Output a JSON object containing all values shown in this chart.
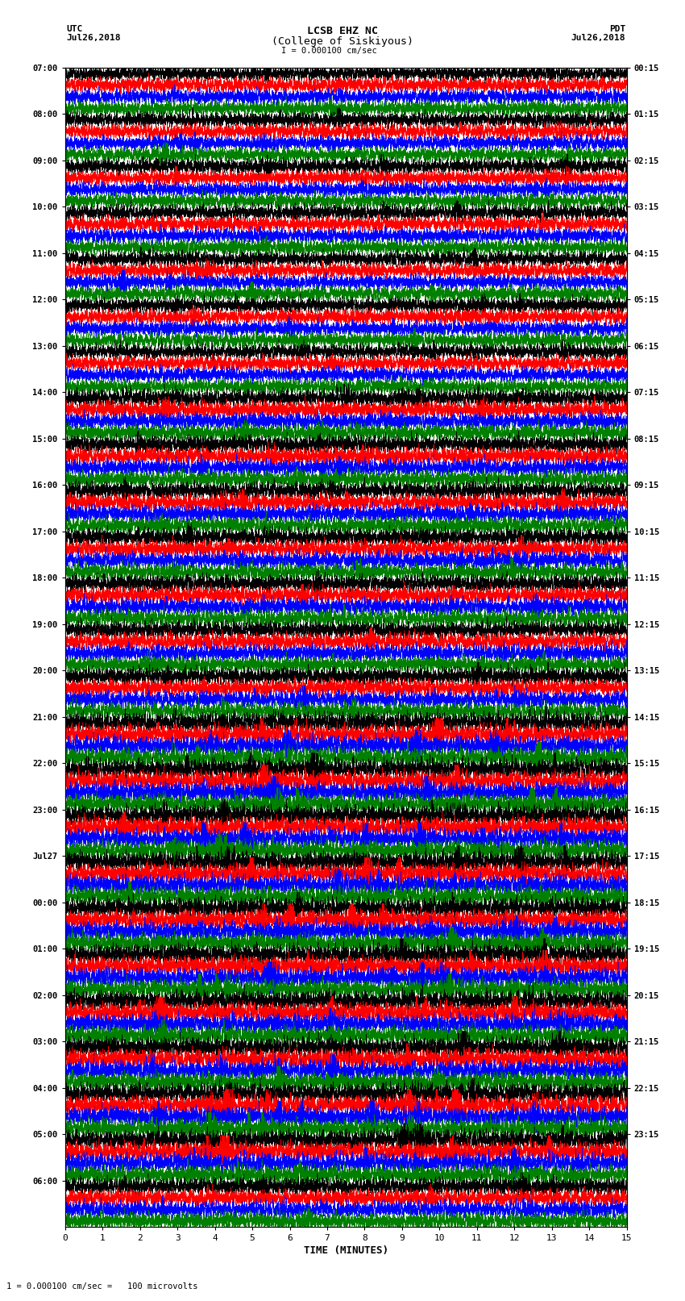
{
  "title_line1": "LCSB EHZ NC",
  "title_line2": "(College of Siskiyous)",
  "scale_label": "I = 0.000100 cm/sec",
  "bottom_label": "1 = 0.000100 cm/sec =   100 microvolts",
  "xlabel": "TIME (MINUTES)",
  "left_header": "UTC",
  "left_date": "Jul26,2018",
  "right_header": "PDT",
  "right_date": "Jul26,2018",
  "utc_labels": [
    "07:00",
    "08:00",
    "09:00",
    "10:00",
    "11:00",
    "12:00",
    "13:00",
    "14:00",
    "15:00",
    "16:00",
    "17:00",
    "18:00",
    "19:00",
    "20:00",
    "21:00",
    "22:00",
    "23:00",
    "Jul27",
    "00:00",
    "01:00",
    "02:00",
    "03:00",
    "04:00",
    "05:00",
    "06:00"
  ],
  "pdt_labels": [
    "00:15",
    "01:15",
    "02:15",
    "03:15",
    "04:15",
    "05:15",
    "06:15",
    "07:15",
    "08:15",
    "09:15",
    "10:15",
    "11:15",
    "12:15",
    "13:15",
    "14:15",
    "15:15",
    "16:15",
    "17:15",
    "18:15",
    "19:15",
    "20:15",
    "21:15",
    "22:15",
    "23:15"
  ],
  "colors": [
    "black",
    "red",
    "blue",
    "green"
  ],
  "figsize": [
    8.5,
    16.13
  ],
  "dpi": 100,
  "n_rows": 25,
  "traces_per_row": 4,
  "xmin": 0,
  "xmax": 15,
  "noise_seed": 42,
  "bg_color": "white",
  "spine_color": "black",
  "trace_amplitude_base": 0.42,
  "trace_amplitude_active": 0.55,
  "active_rows": [
    14,
    15,
    16,
    17,
    18,
    19,
    20,
    21,
    22,
    23
  ],
  "high_rows": [
    7,
    8,
    9,
    10,
    11,
    12,
    13,
    14,
    15,
    16,
    17,
    18,
    19,
    20,
    21,
    22,
    23,
    24
  ]
}
